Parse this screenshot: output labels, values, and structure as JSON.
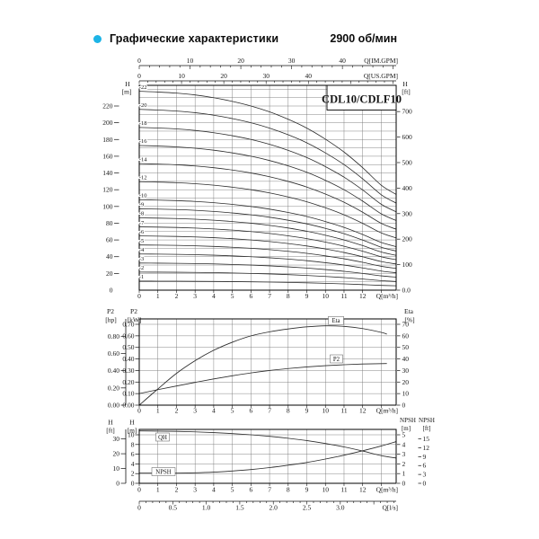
{
  "header": {
    "title": "Графические характеристики",
    "rpm": "2900 об/мин",
    "bullet_color": "#1db4e6"
  },
  "chart_data": [
    {
      "id": "head",
      "type": "line",
      "title": "CDL10/CDLF10",
      "x_max_m3h": 13.8,
      "x_axis": {
        "unit": "Q[m³/h]",
        "tick_labels": [
          "0",
          "1",
          "2",
          "3",
          "4",
          "5",
          "6",
          "7",
          "8",
          "9",
          "10",
          "11",
          "12"
        ]
      },
      "axis_im": {
        "unit": "Q[IM.GPM]",
        "tick_labels": [
          "0",
          "10",
          "20",
          "30",
          "40"
        ],
        "gpm_to_m3h": 0.2728,
        "max_gpm": 50,
        "minor_step": 2
      },
      "axis_us": {
        "unit": "Q[US.GPM]",
        "tick_labels": [
          "0",
          "10",
          "20",
          "30",
          "40"
        ],
        "gpm_to_m3h": 0.2271,
        "max_gpm": 60,
        "minor_step": 2
      },
      "y_left": {
        "name": [
          "H",
          "[m]"
        ],
        "tick_values": [
          220,
          200,
          180,
          160,
          140,
          120,
          100,
          80,
          60,
          40,
          20,
          0
        ],
        "tick_labels": [
          "220",
          "200",
          "180",
          "160",
          "140",
          "120",
          "100",
          "80",
          "60",
          "40",
          "20",
          "0"
        ],
        "grid_step_m": 10,
        "max_m": 244
      },
      "y_right": {
        "name": [
          "H",
          "[ft]"
        ],
        "tick_values": [
          700,
          600,
          500,
          400,
          300,
          200,
          100,
          0
        ],
        "tick_labels": [
          "700",
          "600",
          "500",
          "400",
          "300",
          "200",
          "100",
          "0.0"
        ],
        "ft_to_m": 0.3048
      },
      "single_stage_head": {
        "q_m3h": [
          0,
          1,
          2,
          3,
          4,
          5,
          6,
          7,
          8,
          9,
          10,
          11,
          12,
          13,
          13.8
        ],
        "h_m": [
          10.8,
          10.76,
          10.7,
          10.6,
          10.45,
          10.25,
          10.0,
          9.68,
          9.28,
          8.8,
          8.2,
          7.5,
          6.65,
          5.7,
          5.2
        ]
      },
      "stage_curves": [
        {
          "label": "-22",
          "stages": 22
        },
        {
          "label": "-20",
          "stages": 20
        },
        {
          "label": "-18",
          "stages": 18
        },
        {
          "label": "-16",
          "stages": 16
        },
        {
          "label": "-14",
          "stages": 14
        },
        {
          "label": "-12",
          "stages": 12
        },
        {
          "label": "-10",
          "stages": 10
        },
        {
          "label": "-9",
          "stages": 9
        },
        {
          "label": "-8",
          "stages": 8
        },
        {
          "label": "-7",
          "stages": 7
        },
        {
          "label": "-6",
          "stages": 6
        },
        {
          "label": "-5",
          "stages": 5
        },
        {
          "label": "-4",
          "stages": 4
        },
        {
          "label": "-3",
          "stages": 3
        },
        {
          "label": "-2",
          "stages": 2
        },
        {
          "label": "-1",
          "stages": 1
        }
      ]
    },
    {
      "id": "power",
      "type": "line",
      "x_axis": {
        "unit": "Q[m³/h]",
        "tick_labels": [
          "0",
          "1",
          "2",
          "3",
          "4",
          "5",
          "6",
          "7",
          "8",
          "9",
          "10",
          "11",
          "12"
        ]
      },
      "y_outer": {
        "name": [
          "P2",
          "[hp]"
        ],
        "tick_values": [
          0.8,
          0.6,
          0.4,
          0.2,
          0.0
        ],
        "tick_labels": [
          "0.80",
          "0.60",
          "0.40",
          "0.20",
          "0.00"
        ],
        "hp_to_kw": 0.7457
      },
      "y_inner": {
        "name": [
          "P2",
          "[kW]"
        ],
        "tick_values": [
          0.7,
          0.6,
          0.5,
          0.4,
          0.3,
          0.2,
          0.1,
          0.0
        ],
        "tick_labels": [
          "0.70",
          "0.60",
          "0.50",
          "0.40",
          "0.30",
          "0.20",
          "0.10",
          "0.00"
        ],
        "grid_step_kw": 0.1
      },
      "y_right": {
        "name": [
          "Eta",
          "[%]"
        ],
        "tick_values": [
          70,
          60,
          50,
          40,
          30,
          20,
          10,
          0
        ],
        "tick_labels": [
          "70",
          "60",
          "50",
          "40",
          "30",
          "20",
          "10",
          "0"
        ]
      },
      "series": [
        {
          "name": "Eta",
          "label": "Eta",
          "unit": "%",
          "q_m3h": [
            0,
            1,
            2,
            3,
            4,
            5,
            6,
            7,
            8,
            9,
            10,
            11,
            12,
            13,
            13.3
          ],
          "values": [
            0,
            14,
            27.5,
            38.5,
            47.5,
            54.5,
            60,
            63.5,
            66,
            67.8,
            68.7,
            68.2,
            66.3,
            63,
            61.5
          ]
        },
        {
          "name": "P2",
          "label": "P2",
          "unit": "kW",
          "q_m3h": [
            0,
            1,
            2,
            3,
            4,
            5,
            6,
            7,
            8,
            9,
            10,
            11,
            12,
            13,
            13.3
          ],
          "values": [
            0.1,
            0.134,
            0.166,
            0.197,
            0.227,
            0.254,
            0.279,
            0.3,
            0.317,
            0.331,
            0.342,
            0.35,
            0.356,
            0.359,
            0.36
          ]
        }
      ]
    },
    {
      "id": "npsh",
      "type": "line",
      "x_axis": {
        "unit": "Q[m³/h]",
        "tick_labels": [
          "0",
          "1",
          "2",
          "3",
          "4",
          "5",
          "6",
          "7",
          "8",
          "9",
          "10",
          "11",
          "12"
        ]
      },
      "x_axis2": {
        "unit": "Q[l/s]",
        "tick_values": [
          0,
          0.5,
          1.0,
          1.5,
          2.0,
          2.5,
          3.0
        ],
        "tick_labels": [
          "0",
          "0.5",
          "1.0",
          "1.5",
          "2.0",
          "2.5",
          "3.0"
        ],
        "ls_to_m3h": 3.6,
        "max_ls": 3.8
      },
      "y_outer": {
        "name": [
          "H",
          "[ft]"
        ],
        "tick_values": [
          30,
          20,
          10,
          0
        ],
        "tick_labels": [
          "30",
          "20",
          "10",
          "0"
        ],
        "ft_to_m": 0.3048
      },
      "y_inner": {
        "name": [
          "H",
          "[m]"
        ],
        "tick_values": [
          10,
          8,
          6,
          4,
          2,
          0
        ],
        "tick_labels": [
          "10",
          "8",
          "6",
          "4",
          "2",
          "0"
        ],
        "grid_step_m": 2
      },
      "y_right_m": {
        "name": [
          "NPSH",
          "[m]"
        ],
        "tick_values": [
          5,
          4,
          3,
          2,
          1,
          0
        ],
        "tick_labels": [
          "5",
          "4",
          "3",
          "2",
          "1",
          "0"
        ]
      },
      "y_right_ft": {
        "name": [
          "NPSH",
          "[ft]"
        ],
        "tick_values": [
          15,
          12,
          9,
          6,
          3,
          0
        ],
        "tick_labels": [
          "15",
          "12",
          "9",
          "6",
          "3",
          "0"
        ],
        "ft_to_m": 0.3048
      },
      "series": [
        {
          "name": "QH",
          "label": "QH",
          "q_m3h": [
            0,
            1,
            2,
            3,
            4,
            5,
            6,
            7,
            8,
            9,
            10,
            11,
            12,
            13,
            13.8
          ],
          "h_m": [
            10.8,
            10.76,
            10.7,
            10.6,
            10.45,
            10.25,
            10.0,
            9.68,
            9.28,
            8.8,
            8.2,
            7.5,
            6.65,
            5.7,
            5.2
          ]
        },
        {
          "name": "NPSH",
          "label": "NPSH",
          "q_m3h": [
            0,
            1,
            2,
            3,
            4,
            5,
            6,
            7,
            8,
            9,
            10,
            11,
            12,
            13,
            13.8
          ],
          "npsh_m": [
            1.05,
            1.05,
            1.05,
            1.08,
            1.15,
            1.27,
            1.42,
            1.62,
            1.87,
            2.15,
            2.5,
            2.9,
            3.35,
            3.85,
            4.3
          ]
        }
      ]
    }
  ]
}
